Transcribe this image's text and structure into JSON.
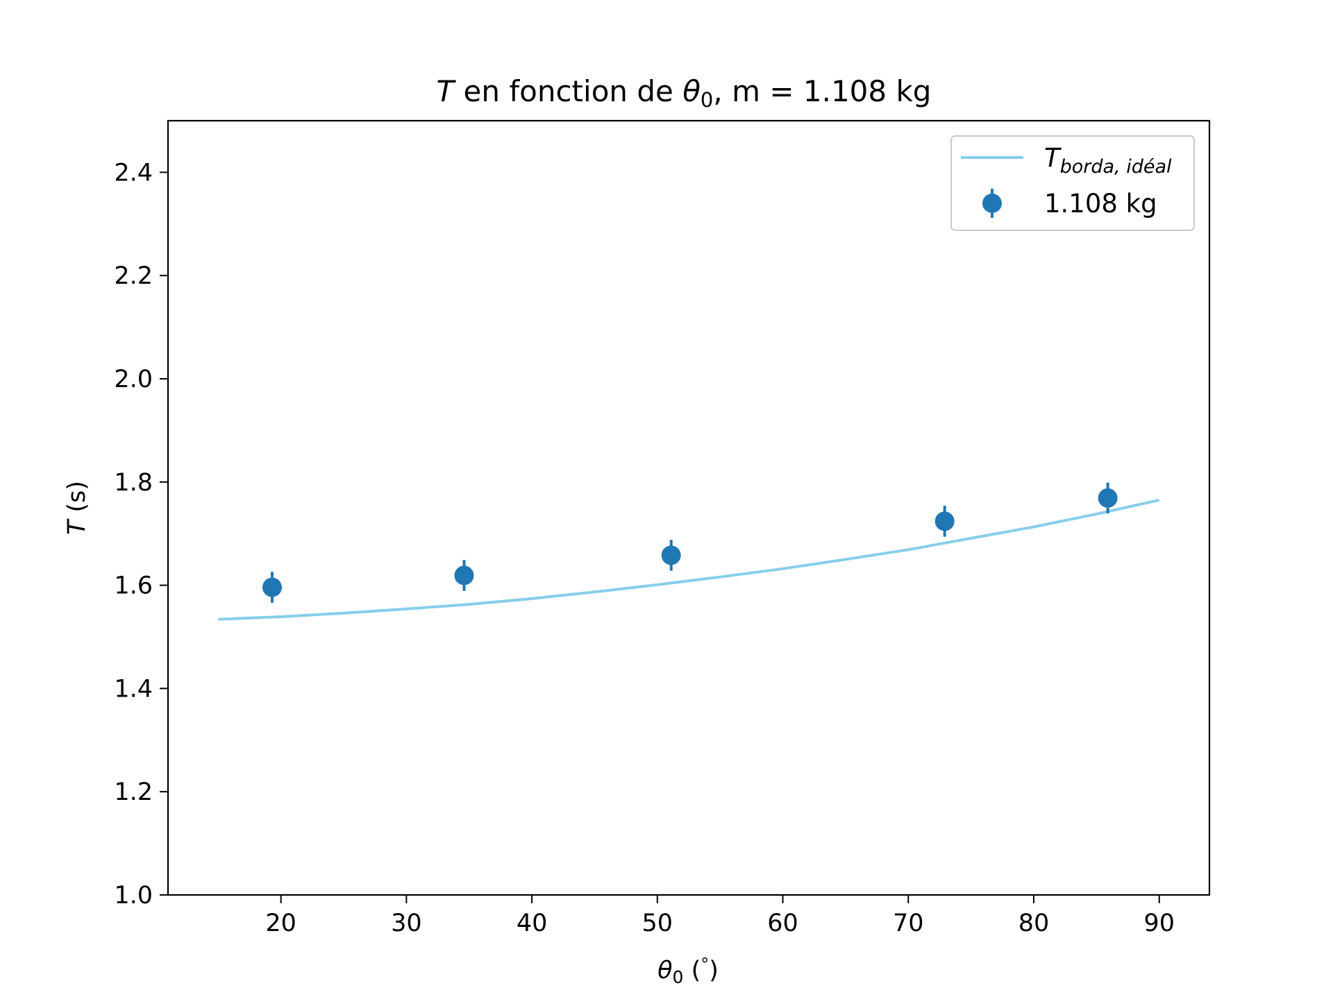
{
  "chart_data": {
    "type": "scatter",
    "title": {
      "var": "T",
      "mid": " en fonction de ",
      "theta": "θ",
      "theta_sub": "0",
      "rest": ", m = 1.108 kg"
    },
    "xlabel": {
      "theta": "θ",
      "sub": "0",
      "unit_open": " (",
      "degree": "°",
      "unit_close": ")"
    },
    "ylabel": {
      "var": "T",
      "unit": " (s)"
    },
    "xlim": [
      11,
      94
    ],
    "ylim": [
      1.0,
      2.5
    ],
    "x_ticks": [
      20,
      30,
      40,
      50,
      60,
      70,
      80,
      90
    ],
    "y_ticks": [
      1.0,
      1.2,
      1.4,
      1.6,
      1.8,
      2.0,
      2.2,
      2.4
    ],
    "grid": false,
    "legend_position": "top-right",
    "series": [
      {
        "name": "T_borda,idéal",
        "legend_main": "T",
        "legend_sub": "borda, idéal",
        "type": "line",
        "color": "#87ceeb",
        "x": [
          15,
          20,
          25,
          30,
          35,
          40,
          45,
          50,
          55,
          60,
          65,
          70,
          75,
          80,
          85,
          90
        ],
        "y": [
          1.534,
          1.539,
          1.546,
          1.554,
          1.563,
          1.574,
          1.587,
          1.601,
          1.616,
          1.632,
          1.65,
          1.669,
          1.691,
          1.713,
          1.738,
          1.765
        ]
      },
      {
        "name": "1.108 kg",
        "type": "errorbar",
        "color": "#1f77b4",
        "x": [
          19.3,
          34.6,
          51.1,
          72.9,
          85.9
        ],
        "y": [
          1.596,
          1.619,
          1.658,
          1.724,
          1.769
        ],
        "yerr": [
          0.03,
          0.03,
          0.03,
          0.03,
          0.03
        ]
      }
    ]
  }
}
